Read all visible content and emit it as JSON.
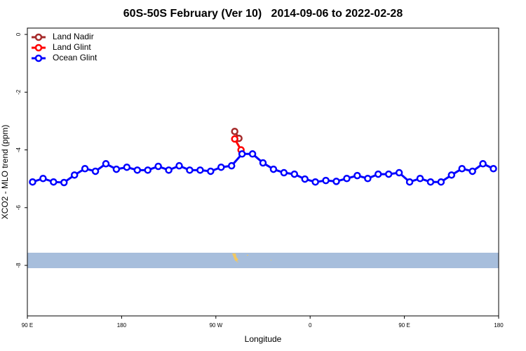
{
  "chart_data": {
    "type": "line",
    "title": "60S-50S February (Ver 10)   2014-09-06 to 2022-02-28",
    "x_label": "Longitude",
    "y_label": "XCO2 - MLO trend (ppm)",
    "xlim": [
      90,
      540
    ],
    "ylim": [
      -9.75,
      0.22
    ],
    "xticks": [
      {
        "value": 90,
        "label": "90 E"
      },
      180,
      {
        "value": 270,
        "label": "90 W"
      },
      {
        "value": 360,
        "label": "0"
      },
      {
        "value": 450,
        "label": "90 E"
      },
      {
        "value": 540,
        "label": "180"
      }
    ],
    "yticks": [
      0,
      -2,
      -4,
      -6,
      -8
    ],
    "legend": "top-left",
    "series": [
      {
        "name": "Land Nadir",
        "color": "#a52a2a",
        "x": [
          288,
          292
        ],
        "values": [
          -3.36,
          -3.6
        ]
      },
      {
        "name": "Land Glint",
        "color": "#ff0000",
        "x": [
          288,
          294
        ],
        "values": [
          -3.62,
          -4.0
        ]
      },
      {
        "name": "Ocean Glint",
        "color": "#0000ff",
        "x": [
          95,
          105,
          115,
          125,
          135,
          145,
          155,
          165,
          175,
          185,
          195,
          205,
          215,
          225,
          235,
          245,
          255,
          265,
          275,
          285,
          295,
          305,
          315,
          325,
          335,
          345,
          355,
          365,
          375,
          385,
          395,
          405,
          415,
          425,
          435,
          445,
          455,
          465,
          475,
          485,
          495,
          505,
          515,
          525,
          535
        ],
        "values": [
          -5.11,
          -4.99,
          -5.11,
          -5.13,
          -4.87,
          -4.65,
          -4.74,
          -4.48,
          -4.67,
          -4.6,
          -4.7,
          -4.7,
          -4.57,
          -4.7,
          -4.55,
          -4.7,
          -4.7,
          -4.74,
          -4.6,
          -4.55,
          -4.14,
          -4.14,
          -4.45,
          -4.67,
          -4.79,
          -4.84,
          -5.01,
          -5.11,
          -5.06,
          -5.09,
          -4.99,
          -4.89,
          -4.99,
          -4.84,
          -4.84,
          -4.79,
          -5.11,
          -4.99,
          -5.11,
          -5.11,
          -4.87,
          -4.65,
          -4.74,
          -4.48,
          -4.65
        ]
      }
    ]
  }
}
